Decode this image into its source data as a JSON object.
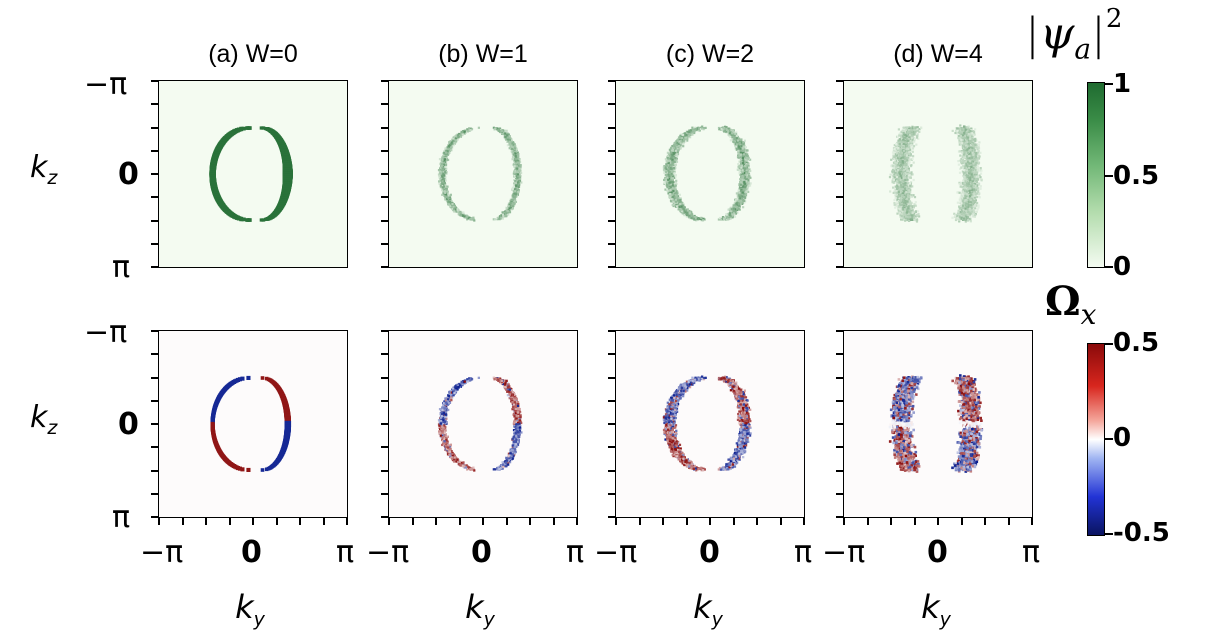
{
  "chart_data": [
    {
      "type": "heatmap",
      "row": "|psi_a|^2",
      "panels": [
        {
          "title": "(a) W=0",
          "W": 0
        },
        {
          "title": "(b) W=1",
          "W": 1
        },
        {
          "title": "(c) W=2",
          "W": 2
        },
        {
          "title": "(d) W=4",
          "W": 4
        }
      ],
      "xlabel": "k_y",
      "ylabel": "k_z",
      "x_ticks": [
        "−π",
        "0",
        "π"
      ],
      "y_ticks": [
        "−π",
        "0",
        "π"
      ],
      "xlim": [
        -3.1416,
        3.1416
      ],
      "ylim": [
        -3.1416,
        3.1416
      ],
      "colorbar": {
        "label": "|ψa|²",
        "ticks": [
          "1",
          "0.5",
          "0"
        ],
        "range": [
          0,
          1
        ],
        "colormap": "Greens"
      },
      "colors": {
        "low": "#f4fbf1",
        "high": "#1f6b30"
      }
    },
    {
      "type": "heatmap",
      "row": "Omega_x",
      "panels": [
        {
          "W": 0
        },
        {
          "W": 1
        },
        {
          "W": 2
        },
        {
          "W": 4
        }
      ],
      "xlabel": "k_y",
      "ylabel": "k_z",
      "x_ticks": [
        "−π",
        "0",
        "π"
      ],
      "y_ticks": [
        "−π",
        "0",
        "π"
      ],
      "xlim": [
        -3.1416,
        3.1416
      ],
      "ylim": [
        -3.1416,
        3.1416
      ],
      "colorbar": {
        "label": "Ωx",
        "ticks": [
          "0.5",
          "0",
          "-0.5"
        ],
        "range": [
          -0.5,
          0.5
        ],
        "colormap": "seismic"
      },
      "colors": {
        "neg": "#0a1f8f",
        "zero": "#ffffff",
        "pos": "#8a0a0a"
      }
    }
  ],
  "labels": {
    "title_a": "(a) W=0",
    "title_b": "(b) W=1",
    "title_c": "(c) W=2",
    "title_d": "(d) W=4",
    "neg_pi": "−π",
    "zero": "0",
    "pi": "π",
    "k": "k",
    "sub_z": "z",
    "sub_y": "y",
    "cb1_ticks": [
      "1",
      "0.5",
      "0"
    ],
    "cb2_ticks": [
      "0.5",
      "0",
      "-0.5"
    ],
    "cb1_title_psi": "ψ",
    "cb1_title_sub": "a",
    "cb1_title_sup": "2",
    "cb2_title_omega": "Ω",
    "cb2_title_sub": "x"
  }
}
